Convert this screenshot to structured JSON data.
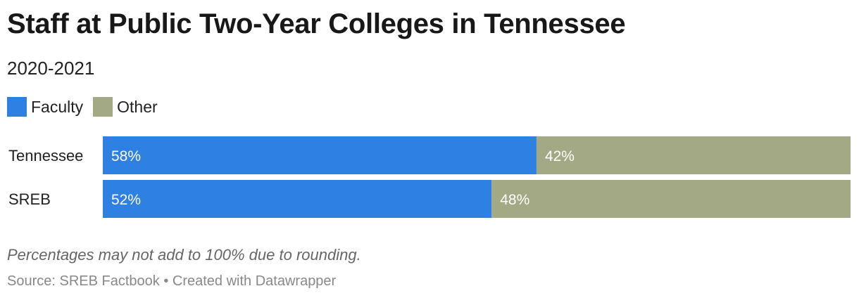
{
  "chart_data": {
    "type": "bar",
    "orientation": "horizontal",
    "stacked": true,
    "title": "Staff at Public Two-Year Colleges in Tennessee",
    "subtitle": "2020-2021",
    "categories": [
      "Tennessee",
      "SREB"
    ],
    "series": [
      {
        "name": "Faculty",
        "values": [
          58,
          52
        ],
        "labels": [
          "58%",
          "52%"
        ],
        "color": "#2f80e3"
      },
      {
        "name": "Other",
        "values": [
          42,
          48
        ],
        "labels": [
          "42%",
          "48%"
        ],
        "color": "#a3a985"
      }
    ],
    "xlim": [
      0,
      100
    ],
    "grid": false,
    "legend": "top-left",
    "note": "Percentages may not add to 100% due to rounding.",
    "source": "Source: SREB Factbook • Created with Datawrapper"
  }
}
